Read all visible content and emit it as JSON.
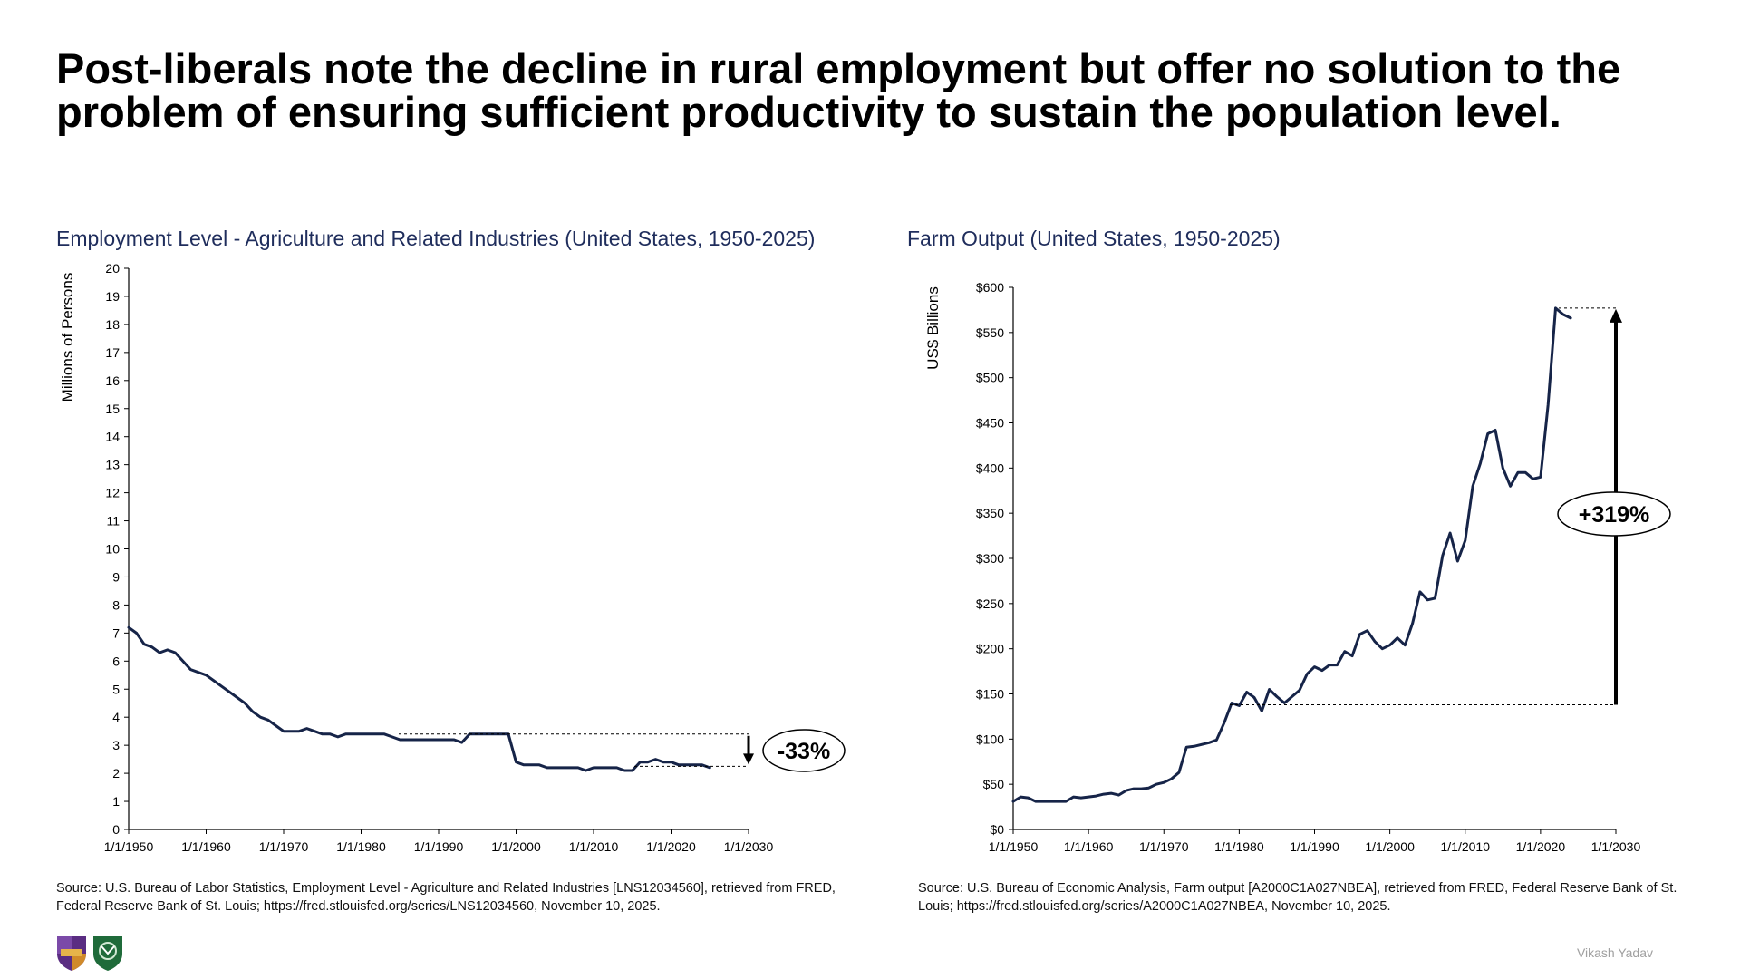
{
  "slide": {
    "title": "Post-liberals note the decline in rural employment but offer no solution to the problem of ensuring sufficient productivity to sustain the population level.",
    "author": "Vikash Yadav"
  },
  "colors": {
    "line": "#162448",
    "chart_title": "#1f2d5c",
    "dashed": "#000000"
  },
  "chart_data": [
    {
      "type": "line",
      "title": "Employment Level - Agriculture and Related Industries (United States, 1950-2025)",
      "ylabel": "Millions of Persons",
      "xlabel": "",
      "xlim": [
        1950,
        2030
      ],
      "ylim": [
        0,
        20
      ],
      "x_ticks": [
        "1/1/1950",
        "1/1/1960",
        "1/1/1970",
        "1/1/1980",
        "1/1/1990",
        "1/1/2000",
        "1/1/2010",
        "1/1/2020",
        "1/1/2030"
      ],
      "y_ticks": [
        "0",
        "1",
        "2",
        "3",
        "4",
        "5",
        "6",
        "7",
        "8",
        "9",
        "10",
        "11",
        "12",
        "13",
        "14",
        "15",
        "16",
        "17",
        "18",
        "19",
        "20"
      ],
      "grid": false,
      "series": [
        {
          "x": [
            1950,
            1951,
            1952,
            1953,
            1954,
            1955,
            1956,
            1957,
            1958,
            1959,
            1960,
            1961,
            1962,
            1963,
            1964,
            1965,
            1966,
            1967,
            1968,
            1969,
            1970,
            1971,
            1972,
            1973,
            1974,
            1975,
            1976,
            1977,
            1978,
            1979,
            1980,
            1981,
            1982,
            1983,
            1984,
            1985,
            1986,
            1987,
            1988,
            1989,
            1990,
            1991,
            1992,
            1993,
            1994,
            1995,
            1996,
            1997,
            1998,
            1999,
            2000,
            2001,
            2002,
            2003,
            2004,
            2005,
            2006,
            2007,
            2008,
            2009,
            2010,
            2011,
            2012,
            2013,
            2014,
            2015,
            2016,
            2017,
            2018,
            2019,
            2020,
            2021,
            2022,
            2023,
            2024,
            2025
          ],
          "values": [
            7.2,
            7.0,
            6.6,
            6.5,
            6.3,
            6.4,
            6.3,
            6.0,
            5.7,
            5.6,
            5.5,
            5.3,
            5.1,
            4.9,
            4.7,
            4.5,
            4.2,
            4.0,
            3.9,
            3.7,
            3.5,
            3.5,
            3.5,
            3.6,
            3.5,
            3.4,
            3.4,
            3.3,
            3.4,
            3.4,
            3.4,
            3.4,
            3.4,
            3.4,
            3.3,
            3.2,
            3.2,
            3.2,
            3.2,
            3.2,
            3.2,
            3.2,
            3.2,
            3.1,
            3.4,
            3.4,
            3.4,
            3.4,
            3.4,
            3.4,
            2.4,
            2.3,
            2.3,
            2.3,
            2.2,
            2.2,
            2.2,
            2.2,
            2.2,
            2.1,
            2.2,
            2.2,
            2.2,
            2.2,
            2.1,
            2.1,
            2.4,
            2.4,
            2.5,
            2.4,
            2.4,
            2.3,
            2.3,
            2.3,
            2.3,
            2.2
          ]
        }
      ],
      "reference_levels": [
        3.4,
        2.25
      ],
      "annotation": "-33%"
    },
    {
      "type": "line",
      "title": "Farm Output (United States, 1950-2025)",
      "ylabel": "US$ Billions",
      "xlabel": "",
      "xlim": [
        1950,
        2030
      ],
      "ylim": [
        0,
        600
      ],
      "x_ticks": [
        "1/1/1950",
        "1/1/1960",
        "1/1/1970",
        "1/1/1980",
        "1/1/1990",
        "1/1/2000",
        "1/1/2010",
        "1/1/2020",
        "1/1/2030"
      ],
      "y_ticks": [
        "$0",
        "$50",
        "$100",
        "$150",
        "$200",
        "$250",
        "$300",
        "$350",
        "$400",
        "$450",
        "$500",
        "$550",
        "$600"
      ],
      "grid": false,
      "series": [
        {
          "x": [
            1950,
            1951,
            1952,
            1953,
            1954,
            1955,
            1956,
            1957,
            1958,
            1959,
            1960,
            1961,
            1962,
            1963,
            1964,
            1965,
            1966,
            1967,
            1968,
            1969,
            1970,
            1971,
            1972,
            1973,
            1974,
            1975,
            1976,
            1977,
            1978,
            1979,
            1980,
            1981,
            1982,
            1983,
            1984,
            1985,
            1986,
            1987,
            1988,
            1989,
            1990,
            1991,
            1992,
            1993,
            1994,
            1995,
            1996,
            1997,
            1998,
            1999,
            2000,
            2001,
            2002,
            2003,
            2004,
            2005,
            2006,
            2007,
            2008,
            2009,
            2010,
            2011,
            2012,
            2013,
            2014,
            2015,
            2016,
            2017,
            2018,
            2019,
            2020,
            2021,
            2022,
            2023,
            2024
          ],
          "values": [
            31,
            36,
            35,
            31,
            31,
            31,
            31,
            31,
            36,
            35,
            36,
            37,
            39,
            40,
            38,
            43,
            45,
            45,
            46,
            50,
            52,
            56,
            63,
            91,
            92,
            94,
            96,
            99,
            118,
            140,
            137,
            152,
            146,
            131,
            155,
            147,
            140,
            147,
            154,
            172,
            180,
            176,
            182,
            182,
            197,
            192,
            216,
            220,
            208,
            200,
            204,
            212,
            204,
            228,
            263,
            254,
            256,
            303,
            328,
            297,
            320,
            380,
            405,
            438,
            442,
            400,
            380,
            395,
            395,
            388,
            390,
            470,
            577,
            570,
            566
          ]
        }
      ],
      "reference_levels": [
        138,
        577
      ],
      "annotation": "+319%"
    }
  ],
  "sources": {
    "left": "Source: U.S. Bureau of Labor Statistics, Employment Level - Agriculture and Related Industries [LNS12034560], retrieved from FRED, Federal Reserve Bank of St. Louis; https://fred.stlouisfed.org/series/LNS12034560, November 10, 2025.",
    "right": "Source: U.S. Bureau of Economic Analysis, Farm output [A2000C1A027NBEA], retrieved from FRED, Federal Reserve Bank of St. Louis; https://fred.stlouisfed.org/series/A2000C1A027NBEA, November 10, 2025."
  },
  "logos": {
    "left": "shield-logo-purple",
    "right": "shield-logo-green"
  }
}
